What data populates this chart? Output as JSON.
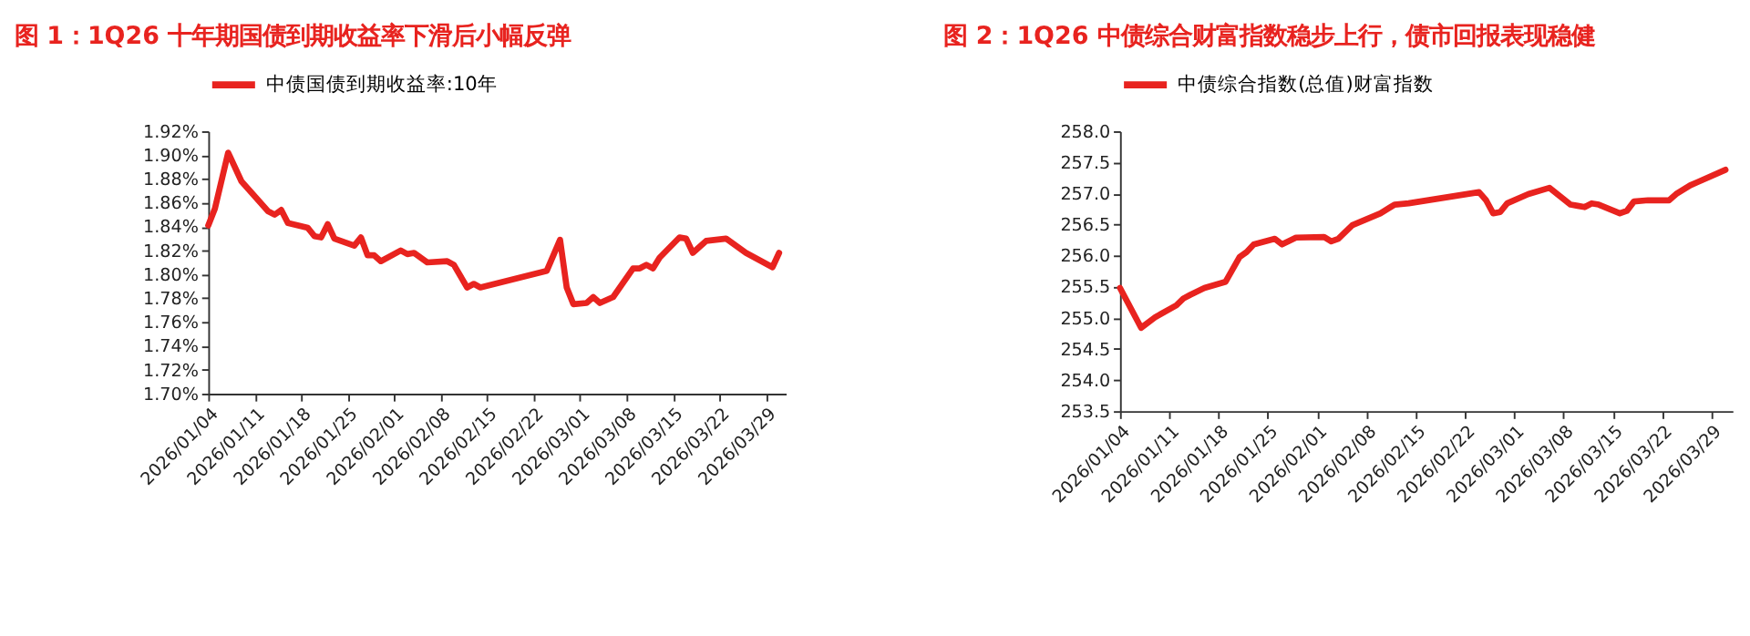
{
  "chart_data": [
    {
      "type": "line",
      "title": "图 1：1Q26 十年期国债到期收益率下滑后小幅反弹",
      "legend": "top",
      "grid": false,
      "line_style": "solid",
      "marker": "none",
      "xlim": [
        "2026-01-04",
        "2026-04-01"
      ],
      "xticks": [
        {
          "value": "2026-01-04",
          "label": "2026/01/04"
        },
        {
          "value": "2026-01-11",
          "label": "2026/01/11"
        },
        {
          "value": "2026-01-18",
          "label": "2026/01/18"
        },
        {
          "value": "2026-01-25",
          "label": "2026/01/25"
        },
        {
          "value": "2026-02-01",
          "label": "2026/02/01"
        },
        {
          "value": "2026-02-08",
          "label": "2026/02/08"
        },
        {
          "value": "2026-02-15",
          "label": "2026/02/15"
        },
        {
          "value": "2026-02-22",
          "label": "2026/02/22"
        },
        {
          "value": "2026-03-01",
          "label": "2026/03/01"
        },
        {
          "value": "2026-03-08",
          "label": "2026/03/08"
        },
        {
          "value": "2026-03-15",
          "label": "2026/03/15"
        },
        {
          "value": "2026-03-22",
          "label": "2026/03/22"
        },
        {
          "value": "2026-03-29",
          "label": "2026/03/29"
        }
      ],
      "ylim": [
        1.7,
        1.92
      ],
      "yticks": [
        {
          "value": 1.7,
          "label": "1.70%"
        },
        {
          "value": 1.72,
          "label": "1.72%"
        },
        {
          "value": 1.74,
          "label": "1.74%"
        },
        {
          "value": 1.76,
          "label": "1.76%"
        },
        {
          "value": 1.78,
          "label": "1.78%"
        },
        {
          "value": 1.8,
          "label": "1.80%"
        },
        {
          "value": 1.82,
          "label": "1.82%"
        },
        {
          "value": 1.84,
          "label": "1.84%"
        },
        {
          "value": 1.86,
          "label": "1.86%"
        },
        {
          "value": 1.88,
          "label": "1.88%"
        },
        {
          "value": 1.9,
          "label": "1.90%"
        },
        {
          "value": 1.92,
          "label": "1.92%"
        }
      ],
      "x": [
        "2026-01-04",
        "2026-01-05",
        "2026-01-07",
        "2026-01-09",
        "2026-01-13",
        "2026-01-14",
        "2026-01-15",
        "2026-01-16",
        "2026-01-19",
        "2026-01-20",
        "2026-01-21",
        "2026-01-22",
        "2026-01-23",
        "2026-01-26",
        "2026-01-27",
        "2026-01-28",
        "2026-01-29",
        "2026-01-30",
        "2026-02-02",
        "2026-02-03",
        "2026-02-04",
        "2026-02-06",
        "2026-02-09",
        "2026-02-10",
        "2026-02-12",
        "2026-02-13",
        "2026-02-14",
        "2026-02-24",
        "2026-02-26",
        "2026-02-27",
        "2026-02-28",
        "2026-03-02",
        "2026-03-03",
        "2026-03-04",
        "2026-03-06",
        "2026-03-09",
        "2026-03-10",
        "2026-03-11",
        "2026-03-12",
        "2026-03-13",
        "2026-03-16",
        "2026-03-17",
        "2026-03-18",
        "2026-03-20",
        "2026-03-23",
        "2026-03-26",
        "2026-03-30",
        "2026-03-31"
      ],
      "series": [
        {
          "name": "中债国债到期收益率:10年",
          "color": "#e8231f",
          "values": [
            1.841,
            1.855,
            1.902,
            1.878,
            1.853,
            1.85,
            1.854,
            1.843,
            1.839,
            1.832,
            1.831,
            1.842,
            1.83,
            1.824,
            1.831,
            1.816,
            1.816,
            1.811,
            1.82,
            1.817,
            1.818,
            1.81,
            1.811,
            1.808,
            1.789,
            1.792,
            1.789,
            1.803,
            1.829,
            1.789,
            1.775,
            1.776,
            1.781,
            1.776,
            1.781,
            1.805,
            1.805,
            1.808,
            1.805,
            1.814,
            1.831,
            1.83,
            1.818,
            1.828,
            1.83,
            1.818,
            1.806,
            1.818
          ]
        }
      ]
    },
    {
      "type": "line",
      "title": "图 2：1Q26 中债综合财富指数稳步上行，债市回报表现稳健",
      "legend": "top",
      "grid": false,
      "line_style": "solid",
      "marker": "none",
      "xlim": [
        "2026-01-04",
        "2026-04-01"
      ],
      "xticks": [
        {
          "value": "2026-01-04",
          "label": "2026/01/04"
        },
        {
          "value": "2026-01-11",
          "label": "2026/01/11"
        },
        {
          "value": "2026-01-18",
          "label": "2026/01/18"
        },
        {
          "value": "2026-01-25",
          "label": "2026/01/25"
        },
        {
          "value": "2026-02-01",
          "label": "2026/02/01"
        },
        {
          "value": "2026-02-08",
          "label": "2026/02/08"
        },
        {
          "value": "2026-02-15",
          "label": "2026/02/15"
        },
        {
          "value": "2026-02-22",
          "label": "2026/02/22"
        },
        {
          "value": "2026-03-01",
          "label": "2026/03/01"
        },
        {
          "value": "2026-03-08",
          "label": "2026/03/08"
        },
        {
          "value": "2026-03-15",
          "label": "2026/03/15"
        },
        {
          "value": "2026-03-22",
          "label": "2026/03/22"
        },
        {
          "value": "2026-03-29",
          "label": "2026/03/29"
        }
      ],
      "ylim": [
        253.5,
        258.0
      ],
      "yticks": [
        {
          "value": 253.5,
          "label": "253.5"
        },
        {
          "value": 254,
          "label": "254.0"
        },
        {
          "value": 254.5,
          "label": "254.5"
        },
        {
          "value": 255,
          "label": "255.0"
        },
        {
          "value": 255.5,
          "label": "255.5"
        },
        {
          "value": 256,
          "label": "256.0"
        },
        {
          "value": 256.5,
          "label": "256.5"
        },
        {
          "value": 257,
          "label": "257.0"
        },
        {
          "value": 257.5,
          "label": "257.5"
        },
        {
          "value": 258,
          "label": "258.0"
        }
      ],
      "x": [
        "2026-01-04",
        "2026-01-07",
        "2026-01-09",
        "2026-01-12",
        "2026-01-13",
        "2026-01-14",
        "2026-01-16",
        "2026-01-19",
        "2026-01-21",
        "2026-01-22",
        "2026-01-23",
        "2026-01-26",
        "2026-01-27",
        "2026-01-29",
        "2026-02-02",
        "2026-02-03",
        "2026-02-04",
        "2026-02-06",
        "2026-02-10",
        "2026-02-12",
        "2026-02-14",
        "2026-02-24",
        "2026-02-25",
        "2026-02-26",
        "2026-02-27",
        "2026-02-28",
        "2026-03-03",
        "2026-03-06",
        "2026-03-09",
        "2026-03-10",
        "2026-03-11",
        "2026-03-12",
        "2026-03-13",
        "2026-03-16",
        "2026-03-17",
        "2026-03-18",
        "2026-03-20",
        "2026-03-23",
        "2026-03-24",
        "2026-03-26",
        "2026-03-27",
        "2026-03-31"
      ],
      "series": [
        {
          "name": "中债综合指数(总值)财富指数",
          "color": "#e8231f",
          "values": [
            255.48,
            254.84,
            255.01,
            255.2,
            255.31,
            255.37,
            255.48,
            255.58,
            255.98,
            256.06,
            256.18,
            256.27,
            256.18,
            256.29,
            256.3,
            256.23,
            256.27,
            256.49,
            256.68,
            256.82,
            256.84,
            257.02,
            256.89,
            256.68,
            256.7,
            256.84,
            256.99,
            257.09,
            256.82,
            256.8,
            256.78,
            256.84,
            256.82,
            256.68,
            256.72,
            256.87,
            256.89,
            256.89,
            256.99,
            257.13,
            257.18,
            257.38
          ]
        }
      ]
    }
  ]
}
